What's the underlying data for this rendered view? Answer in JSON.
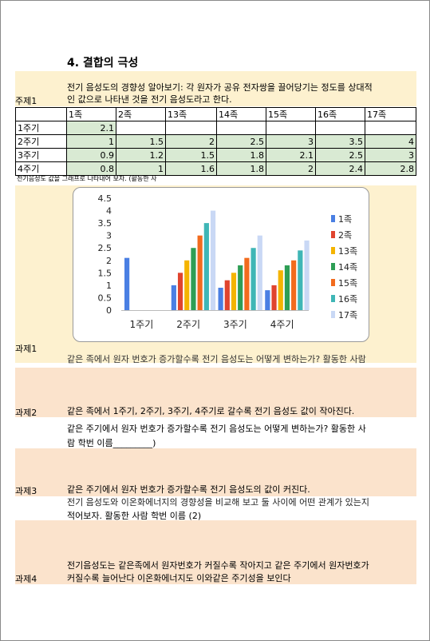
{
  "title": "4. 결합의 극성",
  "topic": {
    "label": "주제1",
    "text_line1": "전기 음성도의 경향성 알아보기: 각 원자가 공유 전자쌍을 끌어당기는 정도를 상대적",
    "text_line2": "인 값으로 나타낸 것을 전기 음성도라고 한다."
  },
  "table": {
    "headers": [
      "1족",
      "2족",
      "13족",
      "14족",
      "15족",
      "16족",
      "17족"
    ],
    "rows": [
      {
        "label": "1주기",
        "values": [
          "2.1",
          "",
          "",
          "",
          "",
          "",
          ""
        ]
      },
      {
        "label": "2주기",
        "values": [
          "1",
          "1.5",
          "2",
          "2.5",
          "3",
          "3.5",
          "4"
        ]
      },
      {
        "label": "3주기",
        "values": [
          "0.9",
          "1.2",
          "1.5",
          "1.8",
          "2.1",
          "2.5",
          "3"
        ]
      },
      {
        "label": "4주기",
        "values": [
          "0.8",
          "1",
          "1.6",
          "1.8",
          "2",
          "2.4",
          "2.8"
        ]
      }
    ]
  },
  "graph_instruction": "전기음성도 값을 그래프로 나타내어 보자. (활동한 사",
  "chart_data": {
    "type": "bar",
    "categories": [
      "1주기",
      "2주기",
      "3주기",
      "4주기"
    ],
    "ylim": [
      0,
      4.5
    ],
    "yticks": [
      "0",
      "0.5",
      "1",
      "1.5",
      "2",
      "2.5",
      "3",
      "3.5",
      "4",
      "4.5"
    ],
    "legend_position": "right",
    "series": [
      {
        "name": "1족",
        "color": "#4a7fe3",
        "values": [
          2.1,
          1,
          0.9,
          0.8
        ]
      },
      {
        "name": "2족",
        "color": "#e0442e",
        "values": [
          null,
          1.5,
          1.2,
          1
        ]
      },
      {
        "name": "13족",
        "color": "#f4b400",
        "values": [
          null,
          2,
          1.5,
          1.6
        ]
      },
      {
        "name": "14족",
        "color": "#2e9e55",
        "values": [
          null,
          2.5,
          1.8,
          1.8
        ]
      },
      {
        "name": "15족",
        "color": "#f26b1d",
        "values": [
          null,
          3,
          2.1,
          2
        ]
      },
      {
        "name": "16족",
        "color": "#3fb6b6",
        "values": [
          null,
          3.5,
          2.5,
          2.4
        ]
      },
      {
        "name": "17족",
        "color": "#c9d8f5",
        "values": [
          null,
          4,
          3,
          2.8
        ]
      }
    ]
  },
  "tasks": [
    {
      "label": "과제1",
      "hidden_line": "같은 족에서 원자 번호가 증가할수록 전기 음성도는 어떻게 변하는가? 활동한 사람"
    },
    {
      "label": "과제2",
      "answer": "같은 족에서 1주기, 2주기, 3주기, 4주기로 갈수록 전기 음성도 값이 작아진다.",
      "question_line1": "같은 주기에서 원자 번호가 증가할수록 전기 음성도는 어떻게 변하는가? 활동한 사",
      "question_line2": "람 학번 이름_________)"
    },
    {
      "label": "과제3",
      "answer": "같은 주기에서 원자 번호가 증가할수록 전기 음성도의 값이 커진다.",
      "question_line1": "전기 음성도와 이온화에너지의 경향성을 비교해 보고 둘 사이에 어떤 관계가 있는지",
      "question_line2": "적어보자.  활동한 사람 학번 이름 (2)"
    },
    {
      "label": "과제4",
      "answer_line1": "전기음성도는 같은족에서 원자번호가 커질수록 작아지고 같은 주기에서 원자번호가",
      "answer_line2": "커질수록 늘어난다 이온화에너지도 이와같은 주기성을 보인다"
    }
  ]
}
